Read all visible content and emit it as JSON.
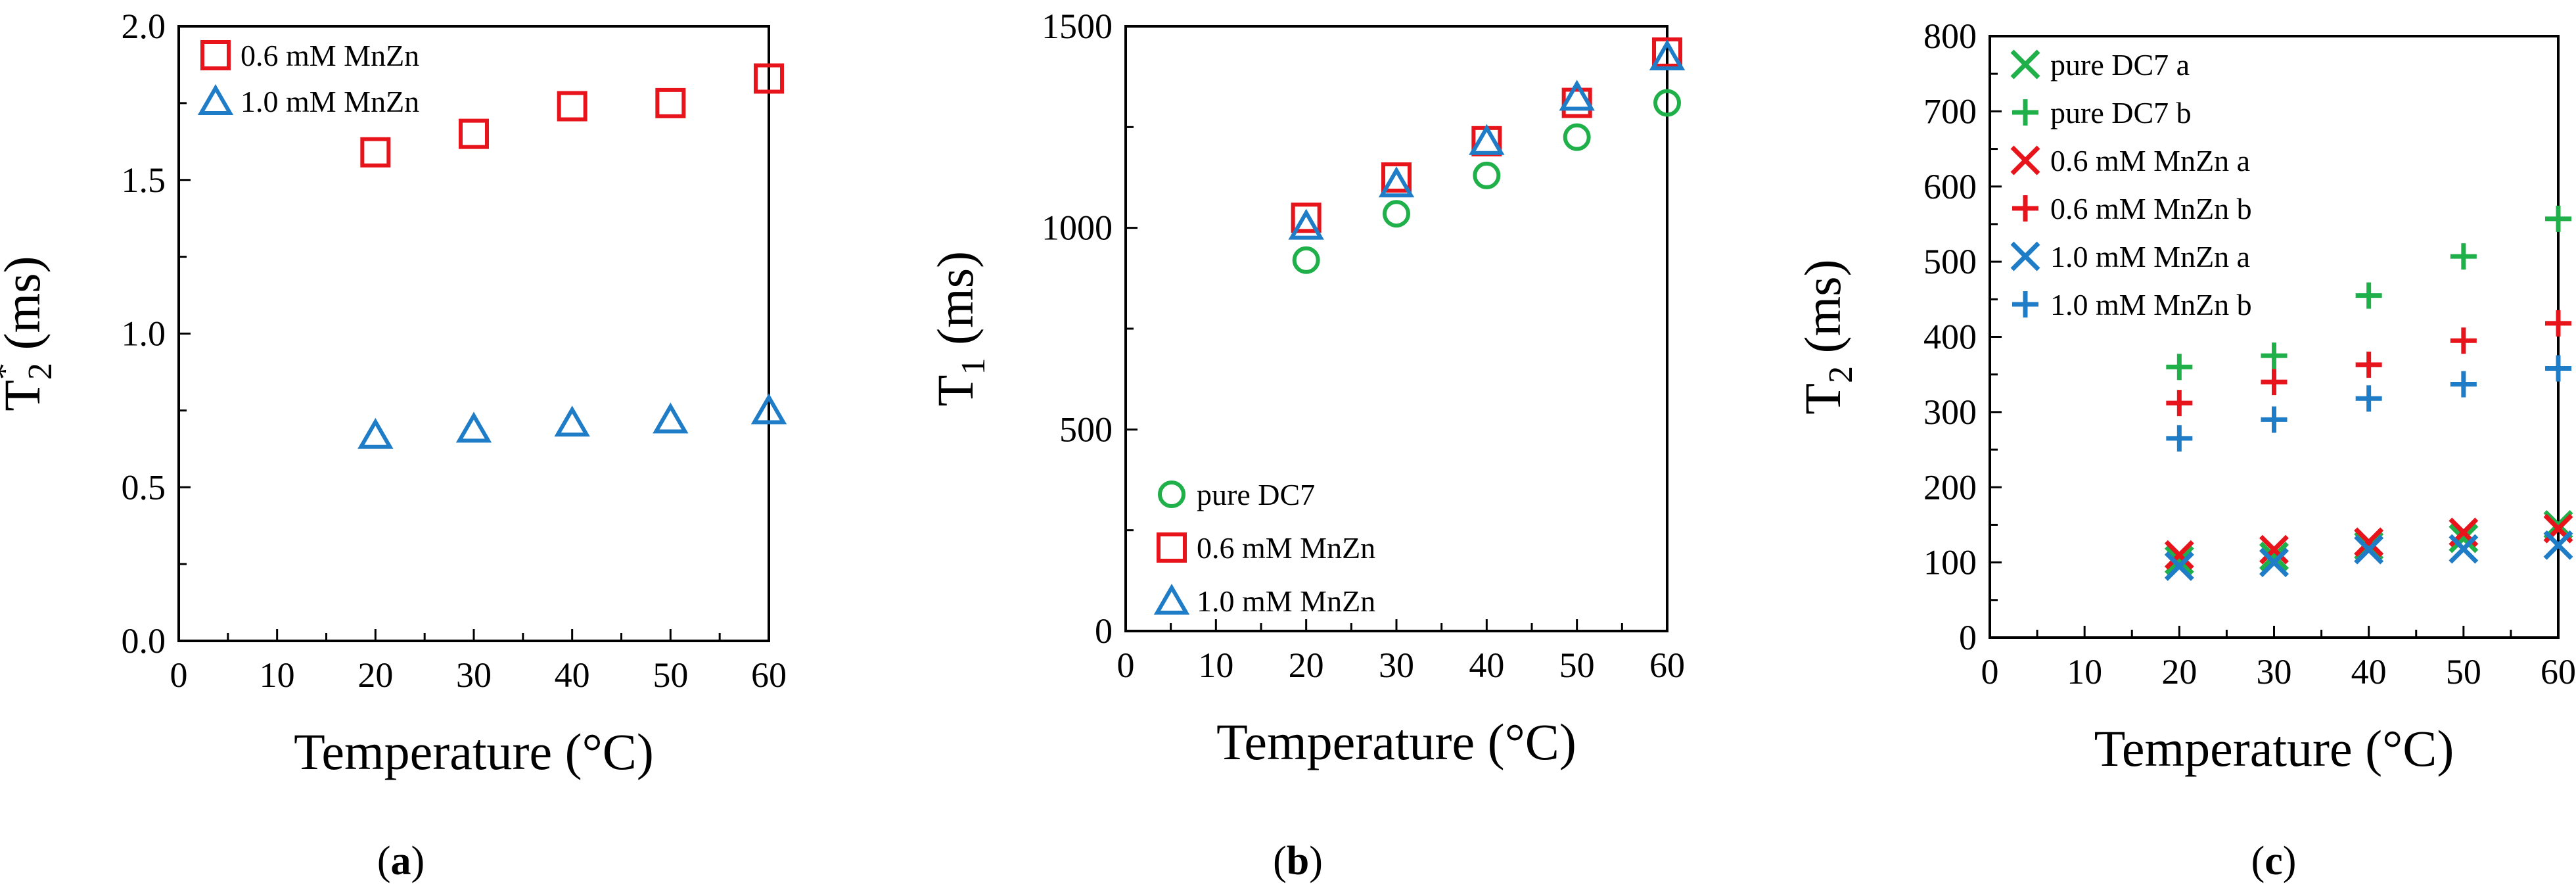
{
  "colors": {
    "red": "#e8141c",
    "blue": "#1f7cc6",
    "green": "#1fb04a",
    "axis": "#000000"
  },
  "chart_data": [
    {
      "panel_label": "(a)",
      "panel_letter": "a",
      "type": "scatter",
      "title": "",
      "xlabel": "Temperature (°C)",
      "ylabel": "T2* (ms)",
      "ylabel_main": "T",
      "ylabel_sub": "2",
      "ylabel_sup": "*",
      "ylabel_unit": " (ms)",
      "xlim": [
        0,
        60
      ],
      "ylim": [
        0,
        2
      ],
      "xticks": [
        "0",
        "10",
        "20",
        "30",
        "40",
        "50",
        "60"
      ],
      "yticks": [
        "0.0",
        "0.5",
        "1.0",
        "1.5",
        "2.0"
      ],
      "legend_position": "top-left",
      "x": [
        20,
        30,
        40,
        50,
        60
      ],
      "series": [
        {
          "name": "0.6 mM MnZn",
          "marker": "square",
          "color": "#e8141c",
          "values": [
            1.59,
            1.65,
            1.74,
            1.75,
            1.83
          ]
        },
        {
          "name": "1.0 mM MnZn",
          "marker": "triangle",
          "color": "#1f7cc6",
          "values": [
            0.67,
            0.69,
            0.71,
            0.72,
            0.75
          ]
        }
      ]
    },
    {
      "panel_label": "(b)",
      "panel_letter": "b",
      "type": "scatter",
      "title": "",
      "xlabel": "Temperature (°C)",
      "ylabel": "T1 (ms)",
      "ylabel_main": "T",
      "ylabel_sub": "1",
      "ylabel_sup": "",
      "ylabel_unit": " (ms)",
      "xlim": [
        0,
        60
      ],
      "ylim": [
        0,
        1500
      ],
      "xticks": [
        "0",
        "10",
        "20",
        "30",
        "40",
        "50",
        "60"
      ],
      "yticks": [
        "0",
        "500",
        "1000",
        "1500"
      ],
      "legend_position": "bottom-left",
      "x": [
        20,
        30,
        40,
        50,
        60
      ],
      "series": [
        {
          "name": "pure DC7",
          "marker": "circle",
          "color": "#1fb04a",
          "values": [
            920,
            1035,
            1130,
            1225,
            1310
          ]
        },
        {
          "name": "0.6 mM MnZn",
          "marker": "square",
          "color": "#e8141c",
          "values": [
            1025,
            1125,
            1215,
            1310,
            1435
          ]
        },
        {
          "name": "1.0 mM MnZn",
          "marker": "triangle",
          "color": "#1f7cc6",
          "values": [
            1005,
            1110,
            1215,
            1325,
            1425
          ]
        }
      ]
    },
    {
      "panel_label": "(c)",
      "panel_letter": "c",
      "type": "scatter",
      "title": "",
      "xlabel": "Temperature (°C)",
      "ylabel": "T2 (ms)",
      "ylabel_main": "T",
      "ylabel_sub": "2",
      "ylabel_sup": "",
      "ylabel_unit": " (ms)",
      "xlim": [
        0,
        60
      ],
      "ylim": [
        0,
        800
      ],
      "xticks": [
        "0",
        "10",
        "20",
        "30",
        "40",
        "50",
        "60"
      ],
      "yticks": [
        "0",
        "100",
        "200",
        "300",
        "400",
        "500",
        "600",
        "700",
        "800"
      ],
      "legend_position": "top-left",
      "x": [
        20,
        30,
        40,
        50,
        60
      ],
      "series": [
        {
          "name": "pure DC7 a",
          "marker": "x",
          "color": "#1fb04a",
          "values": [
            103,
            108,
            122,
            132,
            150
          ]
        },
        {
          "name": "pure DC7 b",
          "marker": "plus",
          "color": "#1fb04a",
          "values": [
            360,
            375,
            455,
            507,
            557
          ]
        },
        {
          "name": "0.6 mM MnZn a",
          "marker": "x",
          "color": "#e8141c",
          "values": [
            110,
            117,
            127,
            140,
            145
          ]
        },
        {
          "name": "0.6 mM MnZn b",
          "marker": "plus",
          "color": "#e8141c",
          "values": [
            312,
            340,
            363,
            395,
            418
          ]
        },
        {
          "name": "1.0 mM MnZn a",
          "marker": "x",
          "color": "#1f7cc6",
          "values": [
            95,
            100,
            117,
            118,
            123
          ]
        },
        {
          "name": "1.0 mM MnZn b",
          "marker": "plus",
          "color": "#1f7cc6",
          "values": [
            265,
            290,
            318,
            337,
            358
          ]
        }
      ]
    }
  ]
}
